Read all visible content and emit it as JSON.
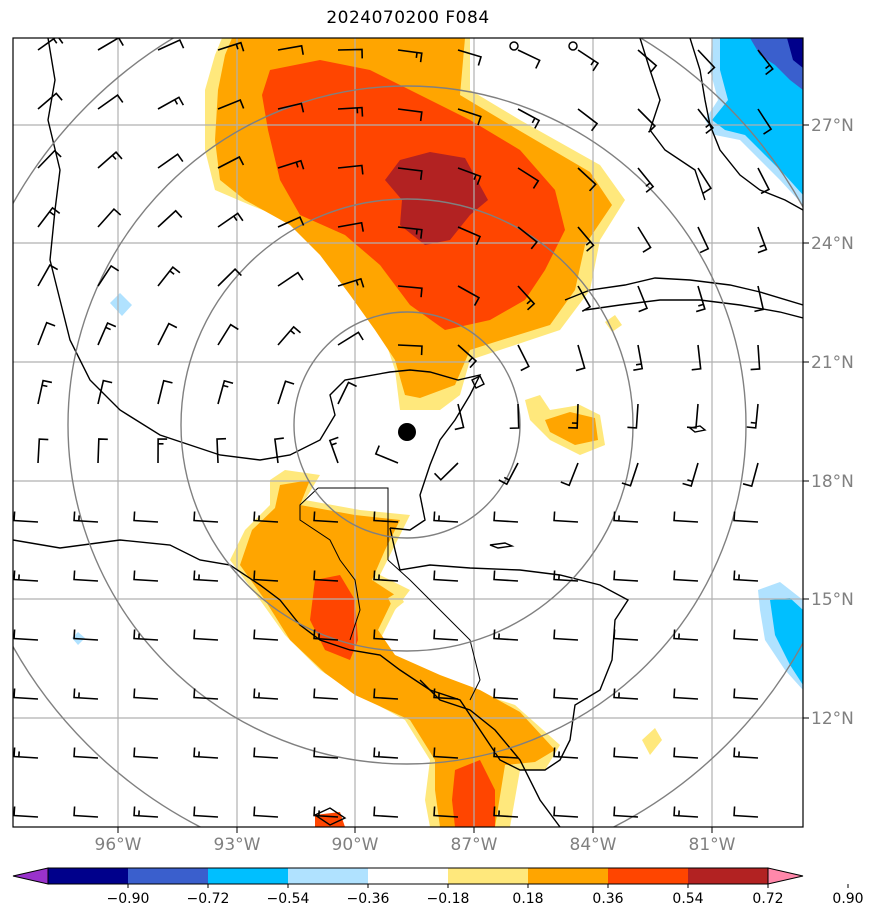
{
  "title": "2024070200 F084",
  "map": {
    "lon_ticks": [
      "96°W",
      "93°W",
      "90°W",
      "87°W",
      "84°W",
      "81°W"
    ],
    "lat_ticks": [
      "27°N",
      "24°N",
      "21°N",
      "18°N",
      "15°N",
      "12°N"
    ],
    "storm_center": {
      "lon": "88.7°W",
      "lat": "19.2°N"
    },
    "range_rings_count": 4
  },
  "colorbar": {
    "labels": [
      "−0.90",
      "−0.72",
      "−0.54",
      "−0.36",
      "−0.18",
      "0.18",
      "0.36",
      "0.54",
      "0.72",
      "0.90"
    ],
    "colors": [
      "#9932cc",
      "#00008b",
      "#3a5fcd",
      "#00bfff",
      "#b0e2ff",
      "#ffffff",
      "#ffe87c",
      "#ffa500",
      "#ff4500",
      "#b22222",
      "#ff88aa"
    ]
  }
}
